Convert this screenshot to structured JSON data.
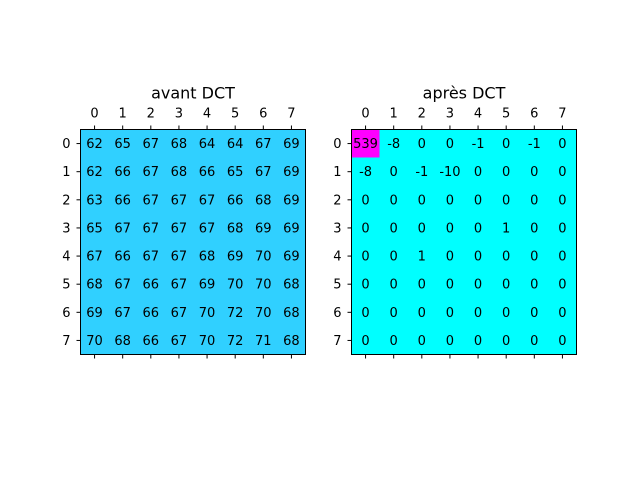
{
  "chart_data": [
    {
      "type": "heatmap",
      "title": "avant DCT",
      "x_ticks": [
        "0",
        "1",
        "2",
        "3",
        "4",
        "5",
        "6",
        "7"
      ],
      "y_ticks": [
        "0",
        "1",
        "2",
        "3",
        "4",
        "5",
        "6",
        "7"
      ],
      "grid": false,
      "colormap": "cool",
      "color_range": [
        -10,
        539
      ],
      "colors": {
        "cell": "#30d0ff",
        "border": "#000000"
      },
      "values": [
        [
          62,
          65,
          67,
          68,
          64,
          64,
          67,
          69
        ],
        [
          62,
          66,
          67,
          68,
          66,
          65,
          67,
          69
        ],
        [
          63,
          66,
          67,
          67,
          67,
          66,
          68,
          69
        ],
        [
          65,
          67,
          67,
          67,
          67,
          68,
          69,
          69
        ],
        [
          67,
          66,
          67,
          67,
          68,
          69,
          70,
          69
        ],
        [
          68,
          67,
          66,
          67,
          69,
          70,
          70,
          68
        ],
        [
          69,
          67,
          66,
          67,
          70,
          72,
          70,
          68
        ],
        [
          70,
          68,
          66,
          67,
          70,
          72,
          71,
          68
        ]
      ]
    },
    {
      "type": "heatmap",
      "title": "après DCT",
      "x_ticks": [
        "0",
        "1",
        "2",
        "3",
        "4",
        "5",
        "6",
        "7"
      ],
      "y_ticks": [
        "0",
        "1",
        "2",
        "3",
        "4",
        "5",
        "6",
        "7"
      ],
      "grid": false,
      "colormap": "cool",
      "color_range": [
        -10,
        539
      ],
      "colors": {
        "cell": "#00ffff",
        "max_cell": "#ff00ff",
        "border": "#000000"
      },
      "values": [
        [
          539,
          -8,
          0,
          0,
          -1,
          0,
          -1,
          0
        ],
        [
          -8,
          0,
          -1,
          -10,
          0,
          0,
          0,
          0
        ],
        [
          0,
          0,
          0,
          0,
          0,
          0,
          0,
          0
        ],
        [
          0,
          0,
          0,
          0,
          0,
          1,
          0,
          0
        ],
        [
          0,
          0,
          1,
          0,
          0,
          0,
          0,
          0
        ],
        [
          0,
          0,
          0,
          0,
          0,
          0,
          0,
          0
        ],
        [
          0,
          0,
          0,
          0,
          0,
          0,
          0,
          0
        ],
        [
          0,
          0,
          0,
          0,
          0,
          0,
          0,
          0
        ]
      ]
    }
  ]
}
